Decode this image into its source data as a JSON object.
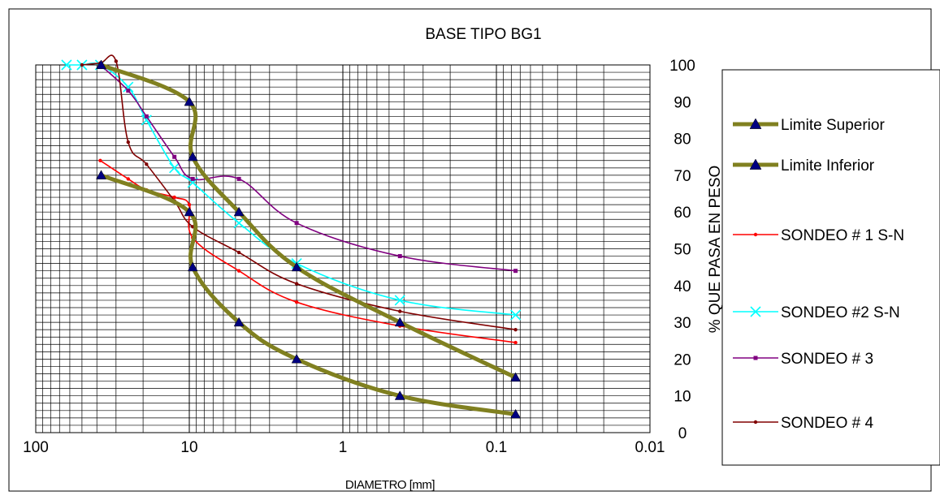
{
  "chart_data": {
    "type": "line",
    "title": "BASE TIPO BG1",
    "xlabel": "DIAMETRO [mm]",
    "ylabel": "% QUE PASA EN PESO",
    "x_scale": "log",
    "x_reversed": true,
    "xlim": [
      100,
      0.01
    ],
    "ylim": [
      0,
      100
    ],
    "x_ticks": [
      {
        "value": 100,
        "label": "100"
      },
      {
        "value": 10,
        "label": "10"
      },
      {
        "value": 1,
        "label": "1"
      },
      {
        "value": 0.1,
        "label": "0.1"
      },
      {
        "value": 0.01,
        "label": "0.01"
      }
    ],
    "y_ticks": [
      {
        "value": 0,
        "label": "0"
      },
      {
        "value": 10,
        "label": "10"
      },
      {
        "value": 20,
        "label": "20"
      },
      {
        "value": 30,
        "label": "30"
      },
      {
        "value": 40,
        "label": "40"
      },
      {
        "value": 50,
        "label": "50"
      },
      {
        "value": 60,
        "label": "60"
      },
      {
        "value": 70,
        "label": "70"
      },
      {
        "value": 80,
        "label": "80"
      },
      {
        "value": 90,
        "label": "90"
      },
      {
        "value": 100,
        "label": "100"
      }
    ],
    "y_axis_side": "right",
    "grid": true,
    "legend_position": "right",
    "series": [
      {
        "name": "Limite Superior",
        "color": "#808020",
        "marker": "triangle",
        "marker_color": "#000080",
        "points": [
          [
            37.5,
            100
          ],
          [
            10,
            90
          ],
          [
            9.5,
            75
          ],
          [
            4.75,
            60
          ],
          [
            2,
            45
          ],
          [
            0.425,
            30
          ],
          [
            0.075,
            15
          ]
        ]
      },
      {
        "name": "Limite Inferior",
        "color": "#808020",
        "marker": "triangle",
        "marker_color": "#000080",
        "points": [
          [
            37.5,
            70
          ],
          [
            10,
            60
          ],
          [
            9.5,
            45
          ],
          [
            4.75,
            30
          ],
          [
            2,
            20
          ],
          [
            0.425,
            10
          ],
          [
            0.075,
            5
          ]
        ]
      },
      {
        "name": "SONDEO # 1 S-N",
        "color": "#ff0000",
        "marker": "dot",
        "marker_color": "#ff0000",
        "points": [
          [
            38,
            74
          ],
          [
            25,
            69
          ],
          [
            19,
            66
          ],
          [
            12.5,
            64
          ],
          [
            10,
            62
          ],
          [
            9.5,
            53
          ],
          [
            4.75,
            44
          ],
          [
            2,
            35.5
          ],
          [
            0.425,
            29
          ],
          [
            0.075,
            24.5
          ]
        ]
      },
      {
        "name": "SONDEO #2 S-N",
        "color": "#00ffff",
        "marker": "x",
        "marker_color": "#00ffff",
        "points": [
          [
            63,
            100
          ],
          [
            50,
            100
          ],
          [
            38,
            100
          ],
          [
            25,
            94
          ],
          [
            19,
            85
          ],
          [
            12.5,
            72
          ],
          [
            9.5,
            68
          ],
          [
            4.75,
            57
          ],
          [
            2,
            46
          ],
          [
            0.425,
            36
          ],
          [
            0.075,
            32
          ]
        ]
      },
      {
        "name": "SONDEO # 3",
        "color": "#800080",
        "marker": "square",
        "marker_color": "#800080",
        "points": [
          [
            38,
            100
          ],
          [
            25,
            93
          ],
          [
            19,
            86
          ],
          [
            12.5,
            75
          ],
          [
            9.5,
            69
          ],
          [
            4.75,
            69
          ],
          [
            2,
            57
          ],
          [
            0.425,
            48
          ],
          [
            0.075,
            44
          ]
        ]
      },
      {
        "name": "SONDEO # 4",
        "color": "#800000",
        "marker": "dot",
        "marker_color": "#800000",
        "points": [
          [
            50,
            100
          ],
          [
            38,
            100.5
          ],
          [
            30,
            101
          ],
          [
            25,
            79
          ],
          [
            19,
            73
          ],
          [
            12.5,
            63
          ],
          [
            9.5,
            56
          ],
          [
            4.75,
            49
          ],
          [
            2,
            40.5
          ],
          [
            0.425,
            33
          ],
          [
            0.075,
            28
          ]
        ]
      }
    ]
  }
}
